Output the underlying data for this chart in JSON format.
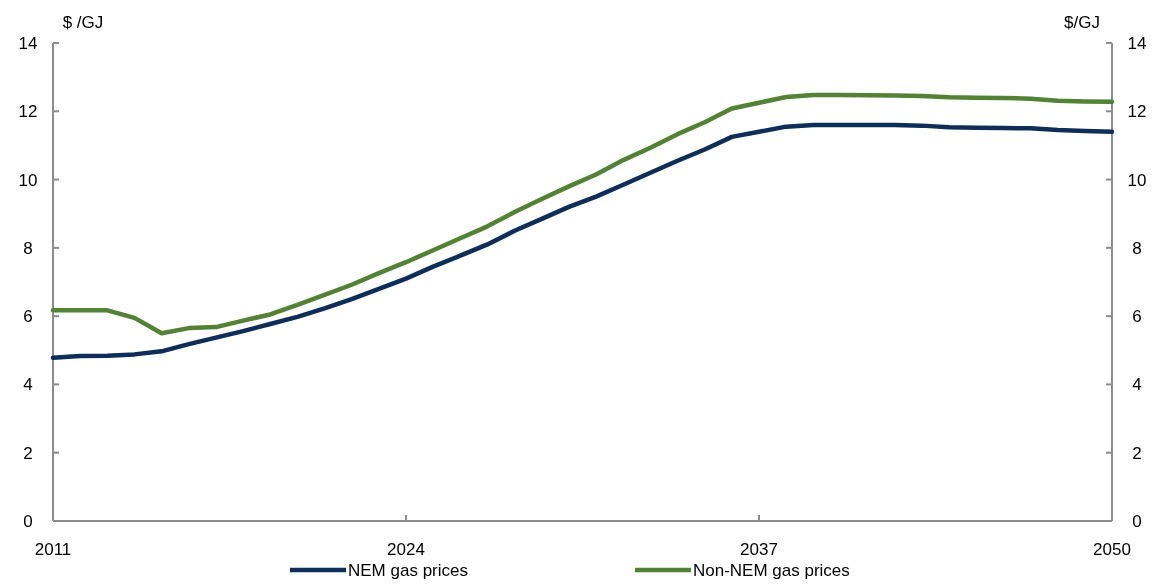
{
  "chart_data": {
    "type": "line",
    "ylabel": "$ /GJ",
    "y2label": "$/GJ",
    "x": [
      2011,
      2012,
      2013,
      2014,
      2015,
      2016,
      2017,
      2018,
      2019,
      2020,
      2021,
      2022,
      2023,
      2024,
      2025,
      2026,
      2027,
      2028,
      2029,
      2030,
      2031,
      2032,
      2033,
      2034,
      2035,
      2036,
      2037,
      2038,
      2039,
      2040,
      2041,
      2042,
      2043,
      2044,
      2045,
      2046,
      2047,
      2048,
      2049,
      2050
    ],
    "series": [
      {
        "name": "NEM gas prices",
        "color": "#0e2d57",
        "values": [
          4.78,
          4.83,
          4.84,
          4.88,
          4.97,
          5.18,
          5.37,
          5.56,
          5.77,
          5.98,
          6.23,
          6.5,
          6.8,
          7.1,
          7.45,
          7.77,
          8.1,
          8.5,
          8.85,
          9.2,
          9.5,
          9.85,
          10.2,
          10.55,
          10.88,
          11.25,
          11.4,
          11.55,
          11.6,
          11.6,
          11.6,
          11.6,
          11.58,
          11.53,
          11.52,
          11.51,
          11.5,
          11.45,
          11.42,
          11.4
        ]
      },
      {
        "name": "Non-NEM gas prices",
        "color": "#538135",
        "values": [
          6.17,
          6.17,
          6.17,
          5.95,
          5.5,
          5.65,
          5.68,
          5.87,
          6.05,
          6.33,
          6.62,
          6.92,
          7.26,
          7.58,
          7.93,
          8.28,
          8.63,
          9.05,
          9.43,
          9.8,
          10.15,
          10.57,
          10.93,
          11.33,
          11.68,
          12.08,
          12.25,
          12.42,
          12.48,
          12.48,
          12.47,
          12.46,
          12.45,
          12.41,
          12.4,
          12.39,
          12.37,
          12.31,
          12.29,
          12.28
        ]
      }
    ],
    "xlim": [
      2011,
      2050
    ],
    "xticks": [
      2011,
      2024,
      2037,
      2050
    ],
    "ylim": [
      0,
      14
    ],
    "yticks": [
      0,
      2,
      4,
      6,
      8,
      10,
      12,
      14
    ],
    "y2lim": [
      0,
      14
    ],
    "y2ticks": [
      0,
      2,
      4,
      6,
      8,
      10,
      12,
      14
    ],
    "grid": false,
    "legend": "bottom",
    "marker": "none",
    "line_style": "solid"
  }
}
